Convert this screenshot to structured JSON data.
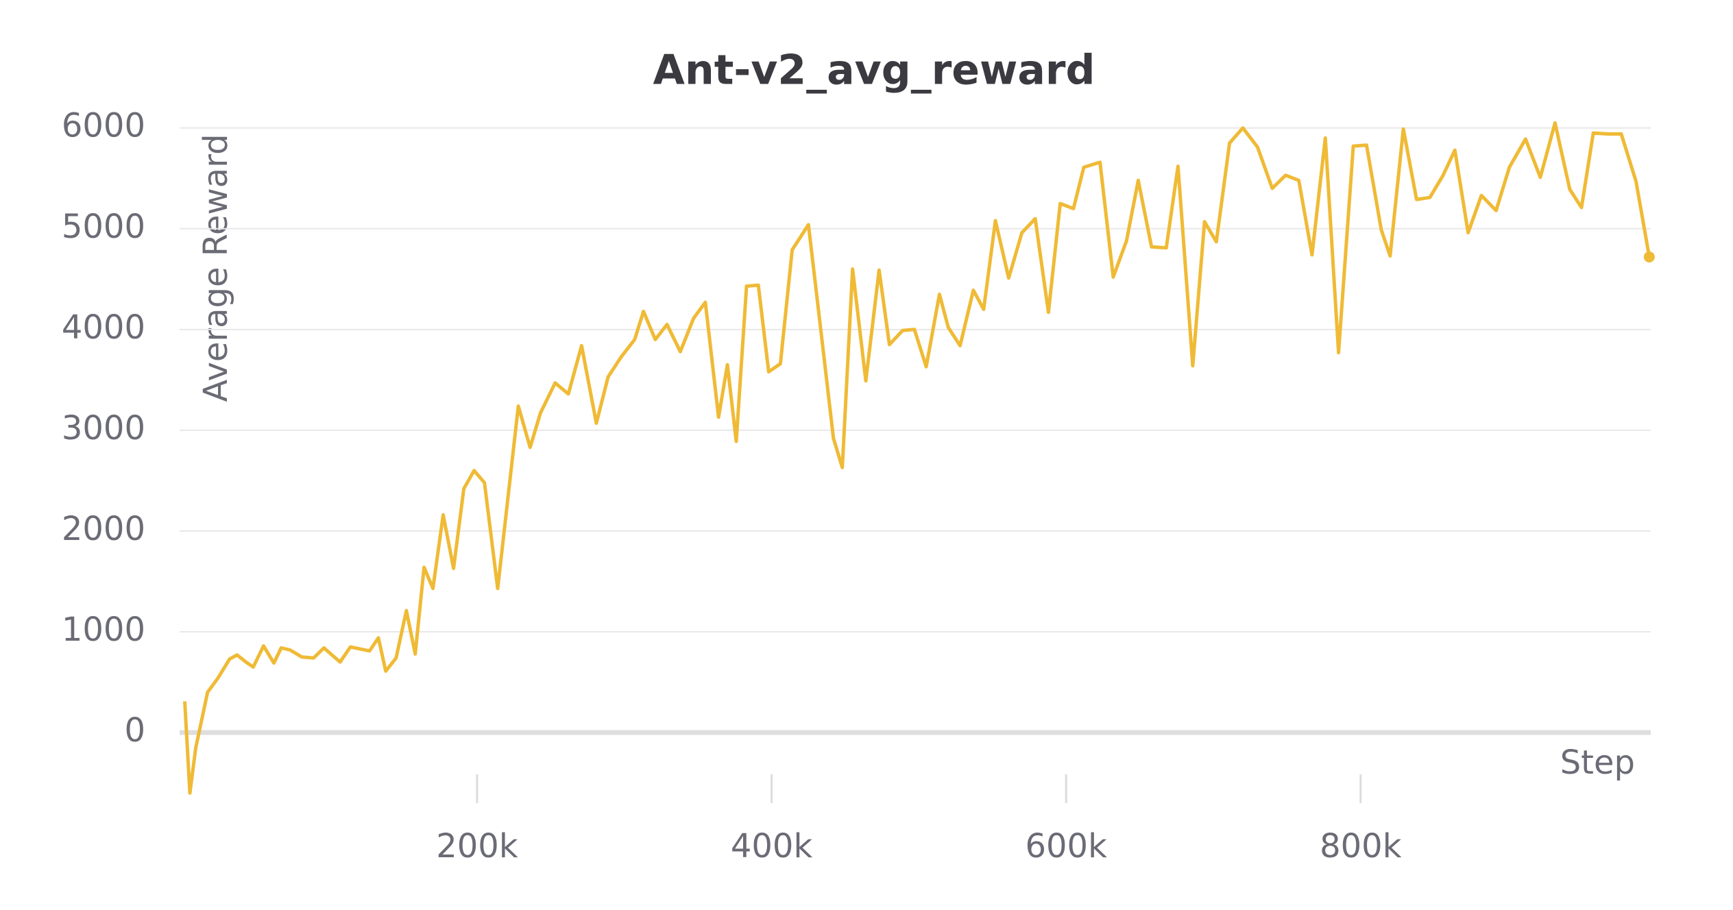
{
  "chart_data": {
    "type": "line",
    "title": "Ant-v2_avg_reward",
    "x_label": "Step",
    "y_label": "Average Reward",
    "x": [
      1500,
      5000,
      9000,
      17000,
      24000,
      32000,
      37000,
      43000,
      48000,
      55000,
      62000,
      67000,
      73000,
      81000,
      89000,
      96000,
      107000,
      114000,
      127000,
      133000,
      138000,
      145000,
      152000,
      158000,
      164000,
      170000,
      177000,
      184000,
      191000,
      198000,
      205000,
      214000,
      228000,
      236000,
      243000,
      253000,
      262000,
      271000,
      281000,
      289000,
      298000,
      307000,
      313000,
      321000,
      329000,
      338000,
      347000,
      355000,
      364000,
      370000,
      376000,
      383000,
      391000,
      398000,
      406000,
      414000,
      425000,
      433000,
      442000,
      448000,
      455000,
      464000,
      473000,
      480000,
      489000,
      497000,
      505000,
      514000,
      520000,
      528000,
      537000,
      544000,
      552000,
      561000,
      570000,
      579000,
      588000,
      596000,
      605000,
      612000,
      623000,
      632000,
      641000,
      649000,
      658000,
      668000,
      676000,
      686000,
      694000,
      702000,
      711000,
      720000,
      730000,
      740000,
      749000,
      758000,
      767000,
      776000,
      785000,
      795000,
      804000,
      814000,
      820000,
      829000,
      838000,
      847000,
      856000,
      864000,
      873000,
      882000,
      892000,
      901000,
      912000,
      922000,
      932000,
      942000,
      950000,
      958000,
      968000,
      977000,
      987000,
      996000
    ],
    "series": [
      {
        "name": "Ant-v2_avg_reward",
        "color": "#efba35",
        "values": [
          310,
          -600,
          -150,
          400,
          540,
          730,
          770,
          700,
          650,
          860,
          690,
          840,
          820,
          750,
          740,
          840,
          700,
          850,
          810,
          940,
          610,
          740,
          1210,
          780,
          1640,
          1430,
          2160,
          1630,
          2420,
          2600,
          2480,
          1430,
          3240,
          2830,
          3170,
          3470,
          3360,
          3840,
          3070,
          3530,
          3730,
          3900,
          4180,
          3900,
          4050,
          3780,
          4110,
          4270,
          3130,
          3650,
          2890,
          4430,
          4440,
          3580,
          3660,
          4790,
          5040,
          4050,
          2920,
          2630,
          4600,
          3490,
          4590,
          3850,
          3990,
          4000,
          3630,
          4350,
          4020,
          3840,
          4390,
          4200,
          5080,
          4510,
          4960,
          5100,
          4170,
          5250,
          5200,
          5610,
          5660,
          4520,
          4880,
          5480,
          4820,
          4810,
          5620,
          3640,
          5070,
          4870,
          5850,
          6000,
          5810,
          5400,
          5530,
          5480,
          4740,
          5900,
          3770,
          5820,
          5830,
          4990,
          4730,
          5990,
          5290,
          5310,
          5530,
          5780,
          4960,
          5330,
          5180,
          5610,
          5890,
          5510,
          6050,
          5390,
          5210,
          5950,
          5940,
          5940,
          5470,
          4720
        ]
      }
    ],
    "xlim": [
      -2000,
      997000
    ],
    "ylim": [
      -700,
      6100
    ],
    "xticks": [
      {
        "value": 200000,
        "label": "200k"
      },
      {
        "value": 400000,
        "label": "400k"
      },
      {
        "value": 600000,
        "label": "600k"
      },
      {
        "value": 800000,
        "label": "800k"
      }
    ],
    "yticks": [
      0,
      1000,
      2000,
      3000,
      4000,
      5000,
      6000
    ],
    "grid": true
  }
}
